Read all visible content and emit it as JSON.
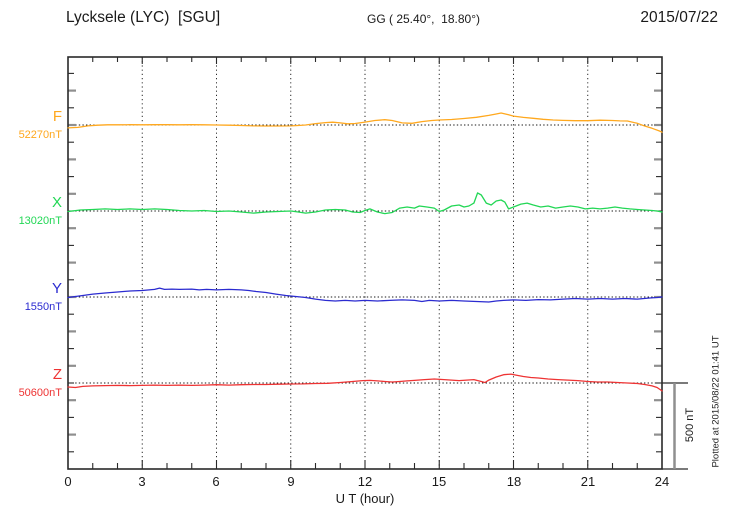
{
  "header": {
    "station": "Lycksele (LYC)  [SGU]",
    "coords": "GG ( 25.40°,  18.80°)",
    "date": "2015/07/22"
  },
  "xaxis": {
    "label": "U T (hour)",
    "tick_labels": [
      "0",
      "3",
      "6",
      "9",
      "12",
      "15",
      "18",
      "21",
      "24"
    ]
  },
  "scalebar_label": "500 nT",
  "plot_note": "Plotted at 2015/08/22 01:41 UT",
  "colors": {
    "frame": "#2a2a2a",
    "tick_gray": "#8f8f8f",
    "dotted": "#1a1a1a"
  },
  "chart_data": {
    "type": "line",
    "title": "Lycksele (LYC)  [SGU] magnetogram 2015/07/22",
    "xlabel": "U T (hour)",
    "x_range": [
      0,
      24
    ],
    "x_ticks": [
      0,
      3,
      6,
      9,
      12,
      15,
      18,
      21,
      24
    ],
    "grid": "dotted vertical gridlines every 3 hours; dotted horizontal baseline per component",
    "legend_position": "left margin",
    "scale_division_nT": 500,
    "series": [
      {
        "name": "F",
        "baseline_label": "52270nT",
        "baseline_nT": 52270,
        "color": "#FFA81E",
        "offsets_nT": [
          [
            0,
            -17
          ],
          [
            0.4,
            -14
          ],
          [
            0.8,
            -5
          ],
          [
            1.2,
            -1
          ],
          [
            1.6,
            1
          ],
          [
            2,
            1
          ],
          [
            2.5,
            2
          ],
          [
            3,
            1
          ],
          [
            3.5,
            2
          ],
          [
            4,
            2
          ],
          [
            4.5,
            1
          ],
          [
            5,
            2
          ],
          [
            5.5,
            1
          ],
          [
            6,
            0
          ],
          [
            6.5,
            -1
          ],
          [
            7,
            -3
          ],
          [
            7.5,
            -5
          ],
          [
            8,
            -6
          ],
          [
            8.5,
            -6
          ],
          [
            9,
            -5
          ],
          [
            9.3,
            -3
          ],
          [
            9.6,
            0
          ],
          [
            10,
            8
          ],
          [
            10.4,
            14
          ],
          [
            10.7,
            16
          ],
          [
            11,
            12
          ],
          [
            11.3,
            7
          ],
          [
            11.6,
            9
          ],
          [
            12,
            17
          ],
          [
            12.4,
            26
          ],
          [
            12.8,
            31
          ],
          [
            13.1,
            26
          ],
          [
            13.5,
            12
          ],
          [
            13.9,
            10
          ],
          [
            14.3,
            20
          ],
          [
            14.7,
            26
          ],
          [
            15,
            29
          ],
          [
            15.5,
            32
          ],
          [
            16,
            38
          ],
          [
            16.5,
            45
          ],
          [
            17,
            56
          ],
          [
            17.3,
            64
          ],
          [
            17.5,
            70
          ],
          [
            17.8,
            60
          ],
          [
            18,
            52
          ],
          [
            18.4,
            44
          ],
          [
            18.8,
            39
          ],
          [
            19.2,
            33
          ],
          [
            19.6,
            29
          ],
          [
            20,
            27
          ],
          [
            20.5,
            25
          ],
          [
            21,
            25
          ],
          [
            21.5,
            28
          ],
          [
            22,
            26
          ],
          [
            22.3,
            24
          ],
          [
            22.6,
            23
          ],
          [
            23,
            10
          ],
          [
            23.3,
            -6
          ],
          [
            23.6,
            -19
          ],
          [
            23.9,
            -35
          ],
          [
            24,
            -42
          ]
        ]
      },
      {
        "name": "X",
        "baseline_label": "13020nT",
        "baseline_nT": 13020,
        "color": "#22D755",
        "offsets_nT": [
          [
            0,
            -3
          ],
          [
            0.5,
            6
          ],
          [
            1,
            9
          ],
          [
            1.5,
            12
          ],
          [
            2,
            9
          ],
          [
            2.5,
            12
          ],
          [
            3,
            9
          ],
          [
            3.5,
            12
          ],
          [
            4,
            9
          ],
          [
            4.5,
            3
          ],
          [
            5,
            0
          ],
          [
            5.5,
            3
          ],
          [
            6,
            -3
          ],
          [
            6.5,
            0
          ],
          [
            7,
            -6
          ],
          [
            7.5,
            -12
          ],
          [
            8,
            -6
          ],
          [
            8.5,
            -3
          ],
          [
            9,
            0
          ],
          [
            9.3,
            -6
          ],
          [
            9.6,
            -12
          ],
          [
            10,
            -6
          ],
          [
            10.4,
            6
          ],
          [
            10.8,
            9
          ],
          [
            11.2,
            6
          ],
          [
            11.5,
            -6
          ],
          [
            11.8,
            -9
          ],
          [
            12,
            3
          ],
          [
            12.2,
            12
          ],
          [
            12.5,
            -6
          ],
          [
            12.8,
            -15
          ],
          [
            13.1,
            -9
          ],
          [
            13.4,
            17
          ],
          [
            13.7,
            23
          ],
          [
            14,
            17
          ],
          [
            14.2,
            29
          ],
          [
            14.5,
            23
          ],
          [
            14.8,
            17
          ],
          [
            15,
            -3
          ],
          [
            15.2,
            6
          ],
          [
            15.5,
            29
          ],
          [
            15.8,
            35
          ],
          [
            16,
            23
          ],
          [
            16.2,
            29
          ],
          [
            16.4,
            46
          ],
          [
            16.55,
            105
          ],
          [
            16.7,
            93
          ],
          [
            16.9,
            46
          ],
          [
            17.1,
            35
          ],
          [
            17.3,
            58
          ],
          [
            17.5,
            64
          ],
          [
            17.65,
            52
          ],
          [
            17.8,
            12
          ],
          [
            18,
            23
          ],
          [
            18.3,
            40
          ],
          [
            18.55,
            46
          ],
          [
            18.8,
            35
          ],
          [
            19.1,
            23
          ],
          [
            19.4,
            29
          ],
          [
            19.7,
            17
          ],
          [
            20,
            23
          ],
          [
            20.3,
            29
          ],
          [
            20.6,
            23
          ],
          [
            20.9,
            12
          ],
          [
            21.2,
            17
          ],
          [
            21.5,
            12
          ],
          [
            21.8,
            17
          ],
          [
            22.1,
            23
          ],
          [
            22.4,
            17
          ],
          [
            22.7,
            12
          ],
          [
            23,
            9
          ],
          [
            23.3,
            6
          ],
          [
            23.6,
            3
          ],
          [
            23.8,
            0
          ],
          [
            24,
            -6
          ]
        ]
      },
      {
        "name": "Y",
        "baseline_label": "1550nT",
        "baseline_nT": 1550,
        "color": "#2B2BD0",
        "offsets_nT": [
          [
            0,
            -3
          ],
          [
            0.3,
            3
          ],
          [
            0.6,
            9
          ],
          [
            1,
            17
          ],
          [
            1.5,
            23
          ],
          [
            2,
            29
          ],
          [
            2.5,
            35
          ],
          [
            3,
            38
          ],
          [
            3.5,
            44
          ],
          [
            3.7,
            52
          ],
          [
            3.9,
            44
          ],
          [
            4.2,
            46
          ],
          [
            4.5,
            44
          ],
          [
            5,
            46
          ],
          [
            5.3,
            41
          ],
          [
            5.6,
            44
          ],
          [
            6,
            41
          ],
          [
            6.5,
            44
          ],
          [
            7,
            41
          ],
          [
            7.3,
            38
          ],
          [
            7.6,
            32
          ],
          [
            8,
            26
          ],
          [
            8.4,
            17
          ],
          [
            8.8,
            9
          ],
          [
            9.2,
            3
          ],
          [
            9.6,
            -3
          ],
          [
            10,
            -12
          ],
          [
            10.4,
            -20
          ],
          [
            10.8,
            -23
          ],
          [
            11.2,
            -20
          ],
          [
            11.6,
            -23
          ],
          [
            12,
            -20
          ],
          [
            12.5,
            -23
          ],
          [
            13,
            -20
          ],
          [
            13.5,
            -17
          ],
          [
            14,
            -20
          ],
          [
            14.3,
            -26
          ],
          [
            14.6,
            -20
          ],
          [
            15,
            -23
          ],
          [
            15.5,
            -20
          ],
          [
            16,
            -23
          ],
          [
            16.5,
            -26
          ],
          [
            17,
            -29
          ],
          [
            17.3,
            -23
          ],
          [
            17.6,
            -20
          ],
          [
            18,
            -17
          ],
          [
            18.5,
            -20
          ],
          [
            19,
            -15
          ],
          [
            19.5,
            -17
          ],
          [
            20,
            -12
          ],
          [
            20.5,
            -9
          ],
          [
            21,
            -12
          ],
          [
            21.5,
            -9
          ],
          [
            22,
            -12
          ],
          [
            22.5,
            -9
          ],
          [
            23,
            -12
          ],
          [
            23.5,
            -6
          ],
          [
            23.8,
            -3
          ],
          [
            24,
            0
          ]
        ]
      },
      {
        "name": "Z",
        "baseline_label": "50600nT",
        "baseline_nT": 50600,
        "color": "#EE3333",
        "offsets_nT": [
          [
            0,
            -23
          ],
          [
            0.3,
            -26
          ],
          [
            0.6,
            -20
          ],
          [
            1,
            -17
          ],
          [
            1.5,
            -15
          ],
          [
            2,
            -14
          ],
          [
            2.5,
            -15
          ],
          [
            3,
            -14
          ],
          [
            3.5,
            -12
          ],
          [
            4,
            -14
          ],
          [
            4.5,
            -12
          ],
          [
            5,
            -14
          ],
          [
            5.5,
            -12
          ],
          [
            6,
            -10
          ],
          [
            6.5,
            -12
          ],
          [
            7,
            -10
          ],
          [
            7.5,
            -9
          ],
          [
            8,
            -9
          ],
          [
            8.5,
            -7
          ],
          [
            9,
            -6
          ],
          [
            9.5,
            -5
          ],
          [
            10,
            -3
          ],
          [
            10.5,
            -2
          ],
          [
            11,
            3
          ],
          [
            11.5,
            9
          ],
          [
            11.9,
            14
          ],
          [
            12.2,
            15
          ],
          [
            12.5,
            12
          ],
          [
            12.8,
            9
          ],
          [
            13.1,
            6
          ],
          [
            13.4,
            9
          ],
          [
            13.7,
            12
          ],
          [
            14,
            15
          ],
          [
            14.4,
            20
          ],
          [
            14.8,
            23
          ],
          [
            15.2,
            20
          ],
          [
            15.5,
            17
          ],
          [
            15.8,
            14
          ],
          [
            16.1,
            17
          ],
          [
            16.4,
            20
          ],
          [
            16.7,
            9
          ],
          [
            16.85,
            3
          ],
          [
            17,
            17
          ],
          [
            17.3,
            35
          ],
          [
            17.6,
            48
          ],
          [
            17.9,
            52
          ],
          [
            18.1,
            46
          ],
          [
            18.4,
            38
          ],
          [
            18.7,
            32
          ],
          [
            19,
            29
          ],
          [
            19.4,
            23
          ],
          [
            19.8,
            20
          ],
          [
            20.2,
            17
          ],
          [
            20.6,
            14
          ],
          [
            21,
            9
          ],
          [
            21.4,
            6
          ],
          [
            21.8,
            6
          ],
          [
            22.2,
            3
          ],
          [
            22.6,
            0
          ],
          [
            23,
            -3
          ],
          [
            23.3,
            -9
          ],
          [
            23.6,
            -17
          ],
          [
            23.8,
            -26
          ],
          [
            24,
            -46
          ]
        ]
      }
    ]
  }
}
